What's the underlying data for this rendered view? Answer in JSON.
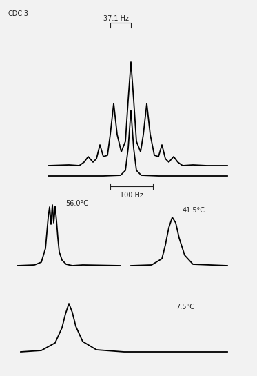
{
  "chart_data": {
    "type": "line",
    "tick_labels": false,
    "grid": false,
    "xlim": [
      0,
      373
    ],
    "ylim": [
      0,
      545
    ],
    "series": [
      {
        "color": "#000000",
        "x": [
          70,
          100,
          115,
          122,
          128,
          135,
          140,
          145,
          150,
          156,
          160,
          165,
          170,
          176,
          182,
          186,
          190,
          194,
          198,
          204,
          208,
          213,
          218,
          224,
          230,
          235,
          240,
          245,
          252,
          258,
          265,
          280,
          300,
          330
        ],
        "values": [
          305,
          306,
          305,
          310,
          318,
          310,
          315,
          335,
          318,
          320,
          350,
          395,
          350,
          325,
          340,
          400,
          455,
          400,
          340,
          325,
          350,
          395,
          350,
          320,
          318,
          335,
          315,
          310,
          318,
          310,
          305,
          306,
          305,
          305
        ]
      },
      {
        "color": "#000000",
        "x": [
          70,
          150,
          175,
          182,
          186,
          190,
          194,
          198,
          205,
          230,
          330
        ],
        "values": [
          290,
          290,
          291,
          298,
          330,
          385,
          330,
          298,
          291,
          290,
          290
        ]
      },
      {
        "color": "#000000",
        "x": [
          25,
          50,
          60,
          66,
          70,
          72,
          74,
          76,
          78,
          80,
          82,
          84,
          86,
          90,
          96,
          105,
          120,
          175
        ],
        "values": [
          160,
          161,
          165,
          185,
          230,
          245,
          220,
          248,
          222,
          246,
          225,
          200,
          180,
          168,
          162,
          160,
          161,
          160
        ]
      },
      {
        "color": "#000000",
        "x": [
          190,
          220,
          235,
          240,
          245,
          250,
          255,
          260,
          268,
          280,
          330
        ],
        "values": [
          160,
          161,
          170,
          190,
          215,
          230,
          222,
          200,
          175,
          162,
          160
        ]
      },
      {
        "color": "#000000",
        "x": [
          30,
          60,
          80,
          90,
          95,
          100,
          105,
          110,
          120,
          140,
          180,
          330
        ],
        "values": [
          35,
          37,
          48,
          70,
          90,
          105,
          92,
          72,
          50,
          38,
          35,
          35
        ]
      }
    ],
    "annotations": [
      {
        "text": "CDCl3"
      },
      {
        "text": "37.1 Hz"
      },
      {
        "text": "100 Hz"
      },
      {
        "text": "56.0°C"
      },
      {
        "text": "41.5°C"
      },
      {
        "text": "7.5°C"
      }
    ]
  }
}
